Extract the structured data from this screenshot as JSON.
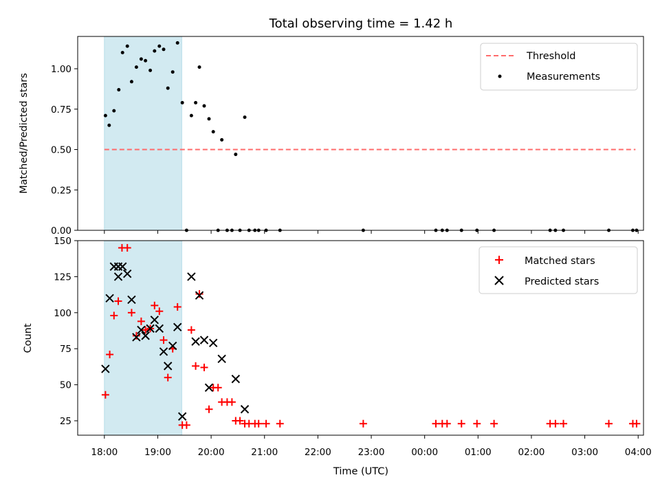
{
  "chart_data": [
    {
      "type": "scatter",
      "title": "Total observing time = 1.42 h",
      "ylabel": "Matched/Predicted stars",
      "xlabel": "",
      "xlim": [
        17.5,
        28.1
      ],
      "ylim": [
        0.0,
        1.2
      ],
      "yticks": [
        "0.00",
        "0.25",
        "0.50",
        "0.75",
        "1.00"
      ],
      "ytick_values": [
        0.0,
        0.25,
        0.5,
        0.75,
        1.0
      ],
      "grid": false,
      "legend": "top-right",
      "shaded_span": {
        "x": [
          18.0,
          19.45
        ],
        "color": "#add8e6"
      },
      "threshold": {
        "name": "Threshold",
        "y": 0.5,
        "x": [
          18.0,
          27.95
        ],
        "color": "#ff6b6b",
        "style": "dashed"
      },
      "series": [
        {
          "name": "Measurements",
          "color": "#000000",
          "marker": "dot",
          "points": [
            [
              18.02,
              0.71
            ],
            [
              18.09,
              0.65
            ],
            [
              18.18,
              0.74
            ],
            [
              18.27,
              0.87
            ],
            [
              18.34,
              1.1
            ],
            [
              18.43,
              1.14
            ],
            [
              18.51,
              0.92
            ],
            [
              18.6,
              1.01
            ],
            [
              18.69,
              1.06
            ],
            [
              18.77,
              1.05
            ],
            [
              18.86,
              0.99
            ],
            [
              18.94,
              1.11
            ],
            [
              19.03,
              1.14
            ],
            [
              19.11,
              1.12
            ],
            [
              19.19,
              0.88
            ],
            [
              19.28,
              0.98
            ],
            [
              19.37,
              1.16
            ],
            [
              19.46,
              0.79
            ],
            [
              19.54,
              0.0
            ],
            [
              19.63,
              0.71
            ],
            [
              19.71,
              0.79
            ],
            [
              19.78,
              1.01
            ],
            [
              19.87,
              0.77
            ],
            [
              19.96,
              0.69
            ],
            [
              20.04,
              0.61
            ],
            [
              20.13,
              0.0
            ],
            [
              20.2,
              0.56
            ],
            [
              20.3,
              0.0
            ],
            [
              20.39,
              0.0
            ],
            [
              20.46,
              0.47
            ],
            [
              20.54,
              0.0
            ],
            [
              20.63,
              0.7
            ],
            [
              20.71,
              0.0
            ],
            [
              20.82,
              0.0
            ],
            [
              20.89,
              0.0
            ],
            [
              21.03,
              0.0
            ],
            [
              21.29,
              0.0
            ],
            [
              22.85,
              0.0
            ],
            [
              24.21,
              0.0
            ],
            [
              24.33,
              0.0
            ],
            [
              24.42,
              0.0
            ],
            [
              24.69,
              0.0
            ],
            [
              24.98,
              0.0
            ],
            [
              25.3,
              0.0
            ],
            [
              26.35,
              0.0
            ],
            [
              26.45,
              0.0
            ],
            [
              26.6,
              0.0
            ],
            [
              27.45,
              0.0
            ],
            [
              27.9,
              0.0
            ],
            [
              27.97,
              0.0
            ]
          ]
        }
      ]
    },
    {
      "type": "scatter",
      "title": "",
      "ylabel": "Count",
      "xlabel": "Time (UTC)",
      "xlim": [
        17.5,
        28.1
      ],
      "ylim": [
        15,
        150
      ],
      "yticks": [
        "25",
        "50",
        "75",
        "100",
        "125",
        "150"
      ],
      "ytick_values": [
        25,
        50,
        75,
        100,
        125,
        150
      ],
      "xticks": [
        "18:00",
        "19:00",
        "20:00",
        "21:00",
        "22:00",
        "23:00",
        "00:00",
        "01:00",
        "02:00",
        "03:00",
        "04:00"
      ],
      "xtick_values": [
        18,
        19,
        20,
        21,
        22,
        23,
        24,
        25,
        26,
        27,
        28
      ],
      "grid": false,
      "legend": "top-right",
      "shaded_span": {
        "x": [
          18.0,
          19.45
        ],
        "color": "#add8e6"
      },
      "series": [
        {
          "name": "Matched stars",
          "color": "#ff0000",
          "marker": "plus",
          "points": [
            [
              18.02,
              43
            ],
            [
              18.1,
              71
            ],
            [
              18.18,
              98
            ],
            [
              18.26,
              108
            ],
            [
              18.33,
              145
            ],
            [
              18.43,
              145
            ],
            [
              18.51,
              100
            ],
            [
              18.6,
              84
            ],
            [
              18.69,
              94
            ],
            [
              18.77,
              88
            ],
            [
              18.86,
              89
            ],
            [
              18.94,
              105
            ],
            [
              19.03,
              101
            ],
            [
              19.11,
              81
            ],
            [
              19.19,
              55
            ],
            [
              19.28,
              75
            ],
            [
              19.37,
              104
            ],
            [
              19.46,
              22
            ],
            [
              19.54,
              22
            ],
            [
              19.63,
              88
            ],
            [
              19.71,
              63
            ],
            [
              19.78,
              113
            ],
            [
              19.87,
              62
            ],
            [
              19.96,
              33
            ],
            [
              20.04,
              48
            ],
            [
              20.13,
              48
            ],
            [
              20.2,
              38
            ],
            [
              20.3,
              38
            ],
            [
              20.39,
              38
            ],
            [
              20.46,
              25
            ],
            [
              20.54,
              25
            ],
            [
              20.63,
              23
            ],
            [
              20.71,
              23
            ],
            [
              20.82,
              23
            ],
            [
              20.89,
              23
            ],
            [
              21.03,
              23
            ],
            [
              21.29,
              23
            ],
            [
              22.85,
              23
            ],
            [
              24.21,
              23
            ],
            [
              24.33,
              23
            ],
            [
              24.42,
              23
            ],
            [
              24.69,
              23
            ],
            [
              24.98,
              23
            ],
            [
              25.3,
              23
            ],
            [
              26.35,
              23
            ],
            [
              26.45,
              23
            ],
            [
              26.6,
              23
            ],
            [
              27.45,
              23
            ],
            [
              27.9,
              23
            ],
            [
              27.97,
              23
            ]
          ]
        },
        {
          "name": "Predicted stars",
          "color": "#000000",
          "marker": "x",
          "points": [
            [
              18.02,
              61
            ],
            [
              18.1,
              110
            ],
            [
              18.18,
              132
            ],
            [
              18.26,
              125
            ],
            [
              18.26,
              132
            ],
            [
              18.34,
              132
            ],
            [
              18.43,
              127
            ],
            [
              18.51,
              109
            ],
            [
              18.6,
              83
            ],
            [
              18.69,
              88
            ],
            [
              18.77,
              84
            ],
            [
              18.86,
              89
            ],
            [
              18.94,
              95
            ],
            [
              19.03,
              89
            ],
            [
              19.11,
              73
            ],
            [
              19.19,
              63
            ],
            [
              19.28,
              77
            ],
            [
              19.37,
              90
            ],
            [
              19.46,
              28
            ],
            [
              19.63,
              125
            ],
            [
              19.71,
              80
            ],
            [
              19.78,
              112
            ],
            [
              19.87,
              81
            ],
            [
              19.96,
              48
            ],
            [
              20.04,
              79
            ],
            [
              20.2,
              68
            ],
            [
              20.46,
              54
            ],
            [
              20.63,
              33
            ]
          ]
        }
      ]
    }
  ]
}
